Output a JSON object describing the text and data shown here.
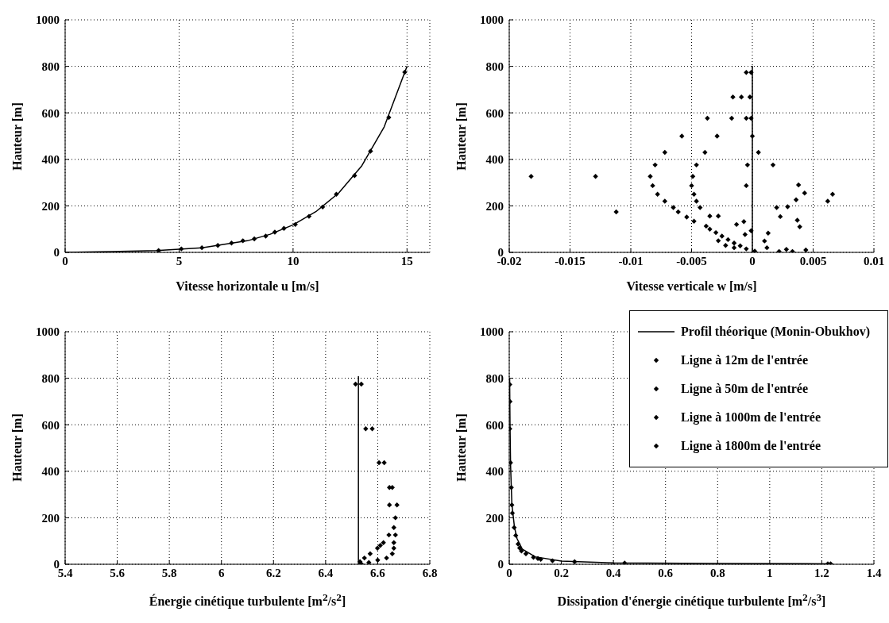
{
  "chart_data": [
    {
      "type": "scatter",
      "xlabel": "Vitesse horizontale u [m/s]",
      "ylabel": "Hauteur [m]",
      "xlim": [
        0,
        16
      ],
      "xticks": [
        0,
        5,
        10,
        15
      ],
      "ylim": [
        0,
        1000
      ],
      "yticks": [
        0,
        200,
        400,
        600,
        800,
        1000
      ],
      "grid": true,
      "marker": "diamond",
      "series": [
        {
          "type": "line",
          "color": "#000000",
          "x": [
            0,
            2,
            4,
            5,
            6,
            7,
            8,
            9,
            10,
            11,
            12,
            13,
            14,
            15
          ],
          "values": [
            0,
            3,
            8,
            14,
            20,
            35,
            50,
            78,
            118,
            175,
            255,
            370,
            540,
            800
          ],
          "marker": "none"
        },
        {
          "color": "#000000",
          "x": [
            4.1,
            5.1,
            6,
            6.7,
            7.3,
            7.8,
            8.3,
            8.8,
            9.2,
            9.6,
            10.1,
            10.7,
            11.3,
            11.9,
            12.7,
            13.4,
            14.2,
            14.9
          ],
          "values": [
            8,
            15,
            20,
            30,
            40,
            50,
            58,
            70,
            87,
            103,
            120,
            155,
            195,
            250,
            330,
            435,
            580,
            775
          ]
        }
      ]
    },
    {
      "type": "scatter",
      "xlabel": "Vitesse verticale w [m/s]",
      "ylabel": "Hauteur [m]",
      "xlim": [
        -0.02,
        0.01
      ],
      "xticks": [
        -0.02,
        -0.015,
        -0.01,
        -0.005,
        0,
        0.005,
        0.01
      ],
      "ylim": [
        0,
        1000
      ],
      "yticks": [
        0,
        200,
        400,
        600,
        800,
        1000
      ],
      "grid": true,
      "marker": "diamond",
      "series": [
        {
          "type": "line",
          "color": "#000000",
          "x": [
            0,
            0
          ],
          "values": [
            0,
            800
          ],
          "marker": "none"
        },
        {
          "color": "#000000",
          "x": [
            -0.0182,
            -0.0129,
            -0.0112,
            -0.0084,
            -0.0082,
            -0.008,
            -0.0078,
            -0.0072,
            -0.0072,
            -0.0065,
            -0.0061,
            -0.0058,
            -0.0054,
            -0.0049,
            -0.005,
            -0.0048,
            -0.0046,
            -0.0046,
            -0.0048,
            -0.0043,
            -0.0039,
            -0.0037,
            -0.0038,
            -0.0029,
            -0.0035,
            -0.0028,
            -0.0017,
            -0.0016,
            -0.0009,
            -0.0005,
            -0.0001,
            -0.0002,
            -0.0005,
            -0.0001,
            0,
            0.0005,
            -0.0004,
            -0.0005,
            0.0017,
            0.0038,
            0.0043,
            0.0036,
            0.002,
            0.0029,
            0.0023,
            0.0037,
            0.0039,
            0.0066,
            0.0062,
            0.0013,
            0.001,
            0.0012,
            0.0022,
            0.0028,
            0.0033,
            0.0044,
            -0.0013,
            -0.0007,
            -0.0006,
            -0.0001,
            -0.0035,
            -0.003,
            -0.0025,
            -0.002,
            -0.0015,
            -0.001,
            -0.0005,
            -0.0028,
            -0.0022,
            -0.0015,
            0.0002
          ],
          "values": [
            327,
            327,
            174,
            327,
            287,
            376,
            250,
            430,
            220,
            193,
            174,
            500,
            152,
            327,
            287,
            250,
            376,
            220,
            134,
            193,
            430,
            577,
            113,
            500,
            156,
            156,
            577,
            668,
            668,
            774,
            774,
            668,
            577,
            577,
            500,
            430,
            376,
            287,
            376,
            290,
            255,
            226,
            193,
            196,
            154,
            138,
            110,
            250,
            220,
            83,
            49,
            20,
            4,
            13,
            4,
            10,
            120,
            132,
            77,
            93,
            100,
            85,
            70,
            55,
            40,
            28,
            15,
            50,
            30,
            20,
            5
          ]
        }
      ]
    },
    {
      "type": "scatter",
      "xlabel": "Énergie cinétique turbulente [m$^{2}$/s$^{2}$]",
      "ylabel": "Hauteur [m]",
      "xlim": [
        5.4,
        6.8
      ],
      "xticks": [
        5.4,
        5.6,
        5.8,
        6,
        6.2,
        6.4,
        6.6,
        6.8
      ],
      "ylim": [
        0,
        1000
      ],
      "yticks": [
        0,
        200,
        400,
        600,
        800,
        1000
      ],
      "grid": true,
      "marker": "diamond",
      "series": [
        {
          "type": "line",
          "color": "#000000",
          "x": [
            6.526,
            6.526
          ],
          "values": [
            0,
            807
          ],
          "marker": "none"
        },
        {
          "color": "#000000",
          "x": [
            6.515,
            6.537,
            6.554,
            6.579,
            6.605,
            6.625,
            6.645,
            6.656,
            6.645,
            6.674,
            6.668,
            6.662,
            6.643,
            6.668,
            6.662,
            6.662,
            6.656,
            6.634,
            6.6,
            6.566,
            6.537,
            6.622,
            6.599,
            6.571,
            6.549,
            6.532,
            6.61
          ],
          "values": [
            775,
            775,
            583,
            583,
            437,
            437,
            330,
            330,
            255,
            255,
            200,
            158,
            126,
            126,
            93,
            69,
            45,
            27,
            18,
            8,
            2,
            93,
            69,
            45,
            27,
            11,
            81
          ]
        }
      ]
    },
    {
      "type": "scatter",
      "xlabel": "Dissipation d'énergie cinétique turbulente [m$^{2}$/s$^{3}$]",
      "ylabel": "Hauteur [m]",
      "xlim": [
        0,
        1.4
      ],
      "xticks": [
        0,
        0.2,
        0.4,
        0.6,
        0.8,
        1,
        1.2,
        1.4
      ],
      "ylim": [
        0,
        1000
      ],
      "yticks": [
        0,
        200,
        400,
        600,
        800,
        1000
      ],
      "grid": true,
      "marker": "diamond",
      "legend": "top right",
      "series": [
        {
          "type": "line",
          "name": "Profil théorique (Monin-Obukhov)",
          "color": "#000000",
          "x": [
            0.0015,
            0.003,
            0.005,
            0.01,
            0.02,
            0.03,
            0.05,
            0.1,
            0.2,
            0.4,
            0.8,
            1.24
          ],
          "values": [
            800,
            600,
            430,
            260,
            160,
            110,
            65,
            32,
            14,
            6,
            3,
            2
          ],
          "marker": "none"
        },
        {
          "name": "Ligne à 12m de l'entrée",
          "color": "#000000",
          "x": [
            0.002,
            0.008,
            0.025,
            0.064,
            0.166,
            1.223
          ],
          "values": [
            773,
            330,
            124,
            45,
            15,
            2
          ]
        },
        {
          "name": "Ligne à 50m de l'entrée",
          "color": "#000000",
          "x": [
            0.002,
            0.01,
            0.034,
            0.093,
            0.251
          ],
          "values": [
            583,
            255,
            87,
            30,
            11
          ]
        },
        {
          "name": "Ligne à 1000m de l'entrée",
          "color": "#000000",
          "x": [
            0.005,
            0.019,
            0.047,
            0.121,
            0.443
          ],
          "values": [
            437,
            158,
            57,
            21,
            5
          ]
        },
        {
          "name": "Ligne à 1800m de l'entrée",
          "color": "#000000",
          "x": [
            0.003,
            0.012,
            0.04,
            0.11,
            1.234
          ],
          "values": [
            700,
            220,
            70,
            25,
            2
          ]
        }
      ]
    }
  ]
}
